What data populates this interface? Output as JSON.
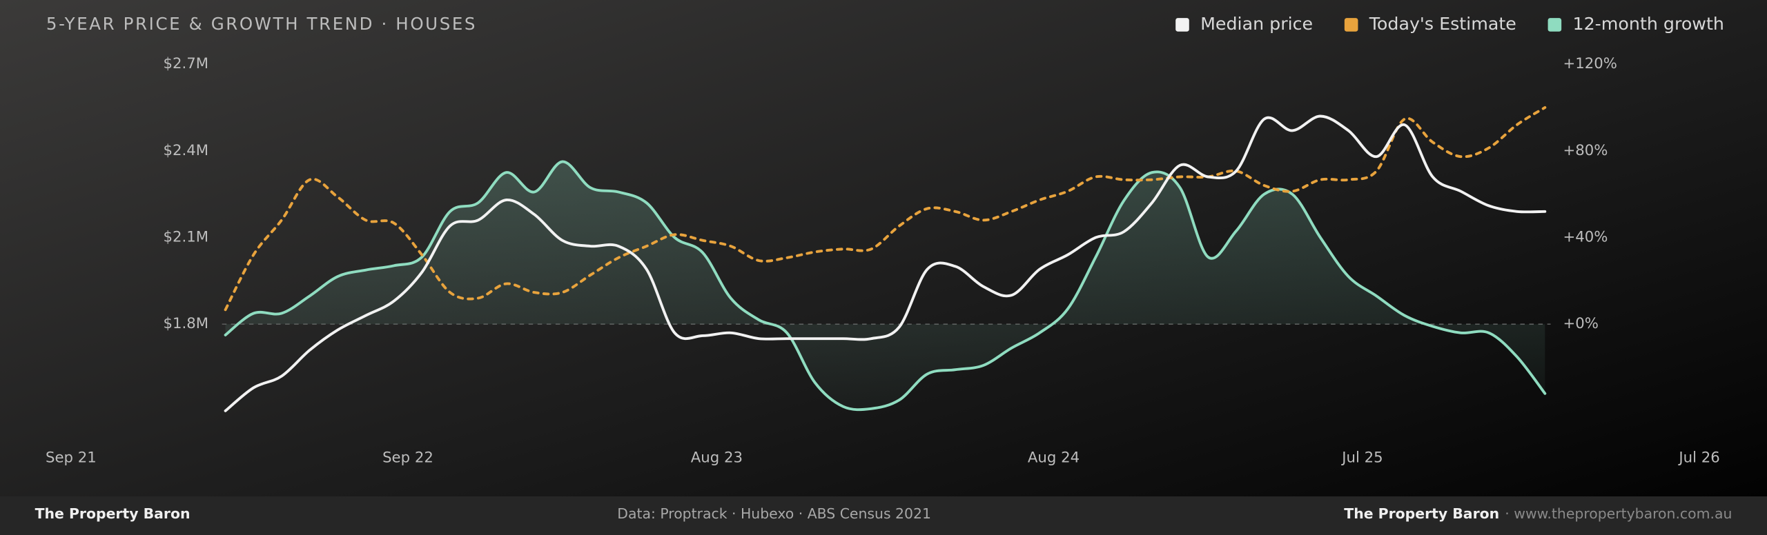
{
  "chart_data": {
    "type": "line",
    "title": "5-YEAR PRICE & GROWTH TREND · HOUSES",
    "x": [
      5.5,
      6.5,
      7.5,
      8.5,
      9.5,
      10.5,
      11.5,
      12.5,
      13.5,
      14.5,
      15.5,
      16.5,
      17.5,
      18.5,
      19.5,
      20.5,
      21.5,
      22.5,
      23.5,
      24.5,
      25.5,
      26.5,
      27.5,
      28.5,
      29.5,
      30.5,
      31.5,
      32.5,
      33.5,
      34.5,
      35.5,
      36.5,
      37.5,
      38.5,
      39.5,
      40.5,
      41.5,
      42.5,
      43.5,
      44.5,
      45.5,
      46.5,
      47.5,
      48.5,
      49.5,
      50.5,
      51.5,
      52.5
    ],
    "xlim": [
      0,
      58
    ],
    "xticks": [
      {
        "value": 0,
        "label": "Sep 21"
      },
      {
        "value": 12,
        "label": "Sep 22"
      },
      {
        "value": 23,
        "label": "Aug 23"
      },
      {
        "value": 35,
        "label": "Aug 24"
      },
      {
        "value": 46,
        "label": "Jul 25"
      },
      {
        "value": 58,
        "label": "Jul 26"
      }
    ],
    "ylim": [
      1500000,
      2700000
    ],
    "yticks": [
      {
        "value": 1800000,
        "label": "$1.8M"
      },
      {
        "value": 2100000,
        "label": "$2.1M"
      },
      {
        "value": 2400000,
        "label": "$2.4M"
      },
      {
        "value": 2700000,
        "label": "$2.7M"
      }
    ],
    "y2lim": [
      -40,
      120
    ],
    "y2ticks": [
      {
        "value": 0,
        "label": "+0%"
      },
      {
        "value": 40,
        "label": "+40%"
      },
      {
        "value": 80,
        "label": "+80%"
      },
      {
        "value": 120,
        "label": "+120%"
      }
    ],
    "zero_line": true,
    "legend": "top-right",
    "series": [
      {
        "name": "Median price",
        "color": "#f2f2f2",
        "dashed": false,
        "fill": false,
        "values": [
          1500000,
          1580000,
          1620000,
          1710000,
          1780000,
          1830000,
          1880000,
          1980000,
          2140000,
          2160000,
          2230000,
          2180000,
          2090000,
          2070000,
          2070000,
          1990000,
          1770000,
          1760000,
          1770000,
          1750000,
          1750000,
          1750000,
          1750000,
          1750000,
          1790000,
          1990000,
          2000000,
          1930000,
          1900000,
          1990000,
          2040000,
          2100000,
          2120000,
          2220000,
          2350000,
          2310000,
          2330000,
          2510000,
          2470000,
          2520000,
          2470000,
          2380000,
          2490000,
          2310000,
          2260000,
          2210000,
          2190000,
          2190000
        ]
      },
      {
        "name": "Today's Estimate",
        "color": "#e8a33d",
        "dashed": true,
        "fill": false,
        "values": [
          1850000,
          2040000,
          2160000,
          2300000,
          2240000,
          2160000,
          2150000,
          2040000,
          1910000,
          1890000,
          1940000,
          1910000,
          1910000,
          1970000,
          2030000,
          2070000,
          2110000,
          2090000,
          2070000,
          2020000,
          2030000,
          2050000,
          2060000,
          2060000,
          2140000,
          2200000,
          2190000,
          2160000,
          2190000,
          2230000,
          2260000,
          2310000,
          2300000,
          2300000,
          2310000,
          2310000,
          2330000,
          2280000,
          2260000,
          2300000,
          2300000,
          2330000,
          2510000,
          2430000,
          2380000,
          2410000,
          2490000,
          2550000
        ]
      },
      {
        "name": "12-month growth",
        "color": "#8fdcc0",
        "axis": "y2",
        "dashed": false,
        "fill": true,
        "values": [
          -5,
          5,
          5,
          13,
          22,
          25,
          27,
          31,
          52,
          56,
          70,
          61,
          75,
          63,
          61,
          56,
          40,
          33,
          12,
          2,
          -4,
          -27,
          -38,
          -39,
          -35,
          -23,
          -21,
          -19,
          -11,
          -4,
          7,
          31,
          57,
          70,
          63,
          31,
          43,
          60,
          60,
          40,
          22,
          13,
          4,
          -1,
          -4,
          -4,
          -15,
          -32
        ]
      }
    ]
  },
  "footer": {
    "left": "The Property Baron",
    "source": "Data: Proptrack · Hubexo · ABS Census 2021",
    "right_brand": "The Property Baron",
    "right_url": "· www.thepropertybaron.com.au"
  }
}
